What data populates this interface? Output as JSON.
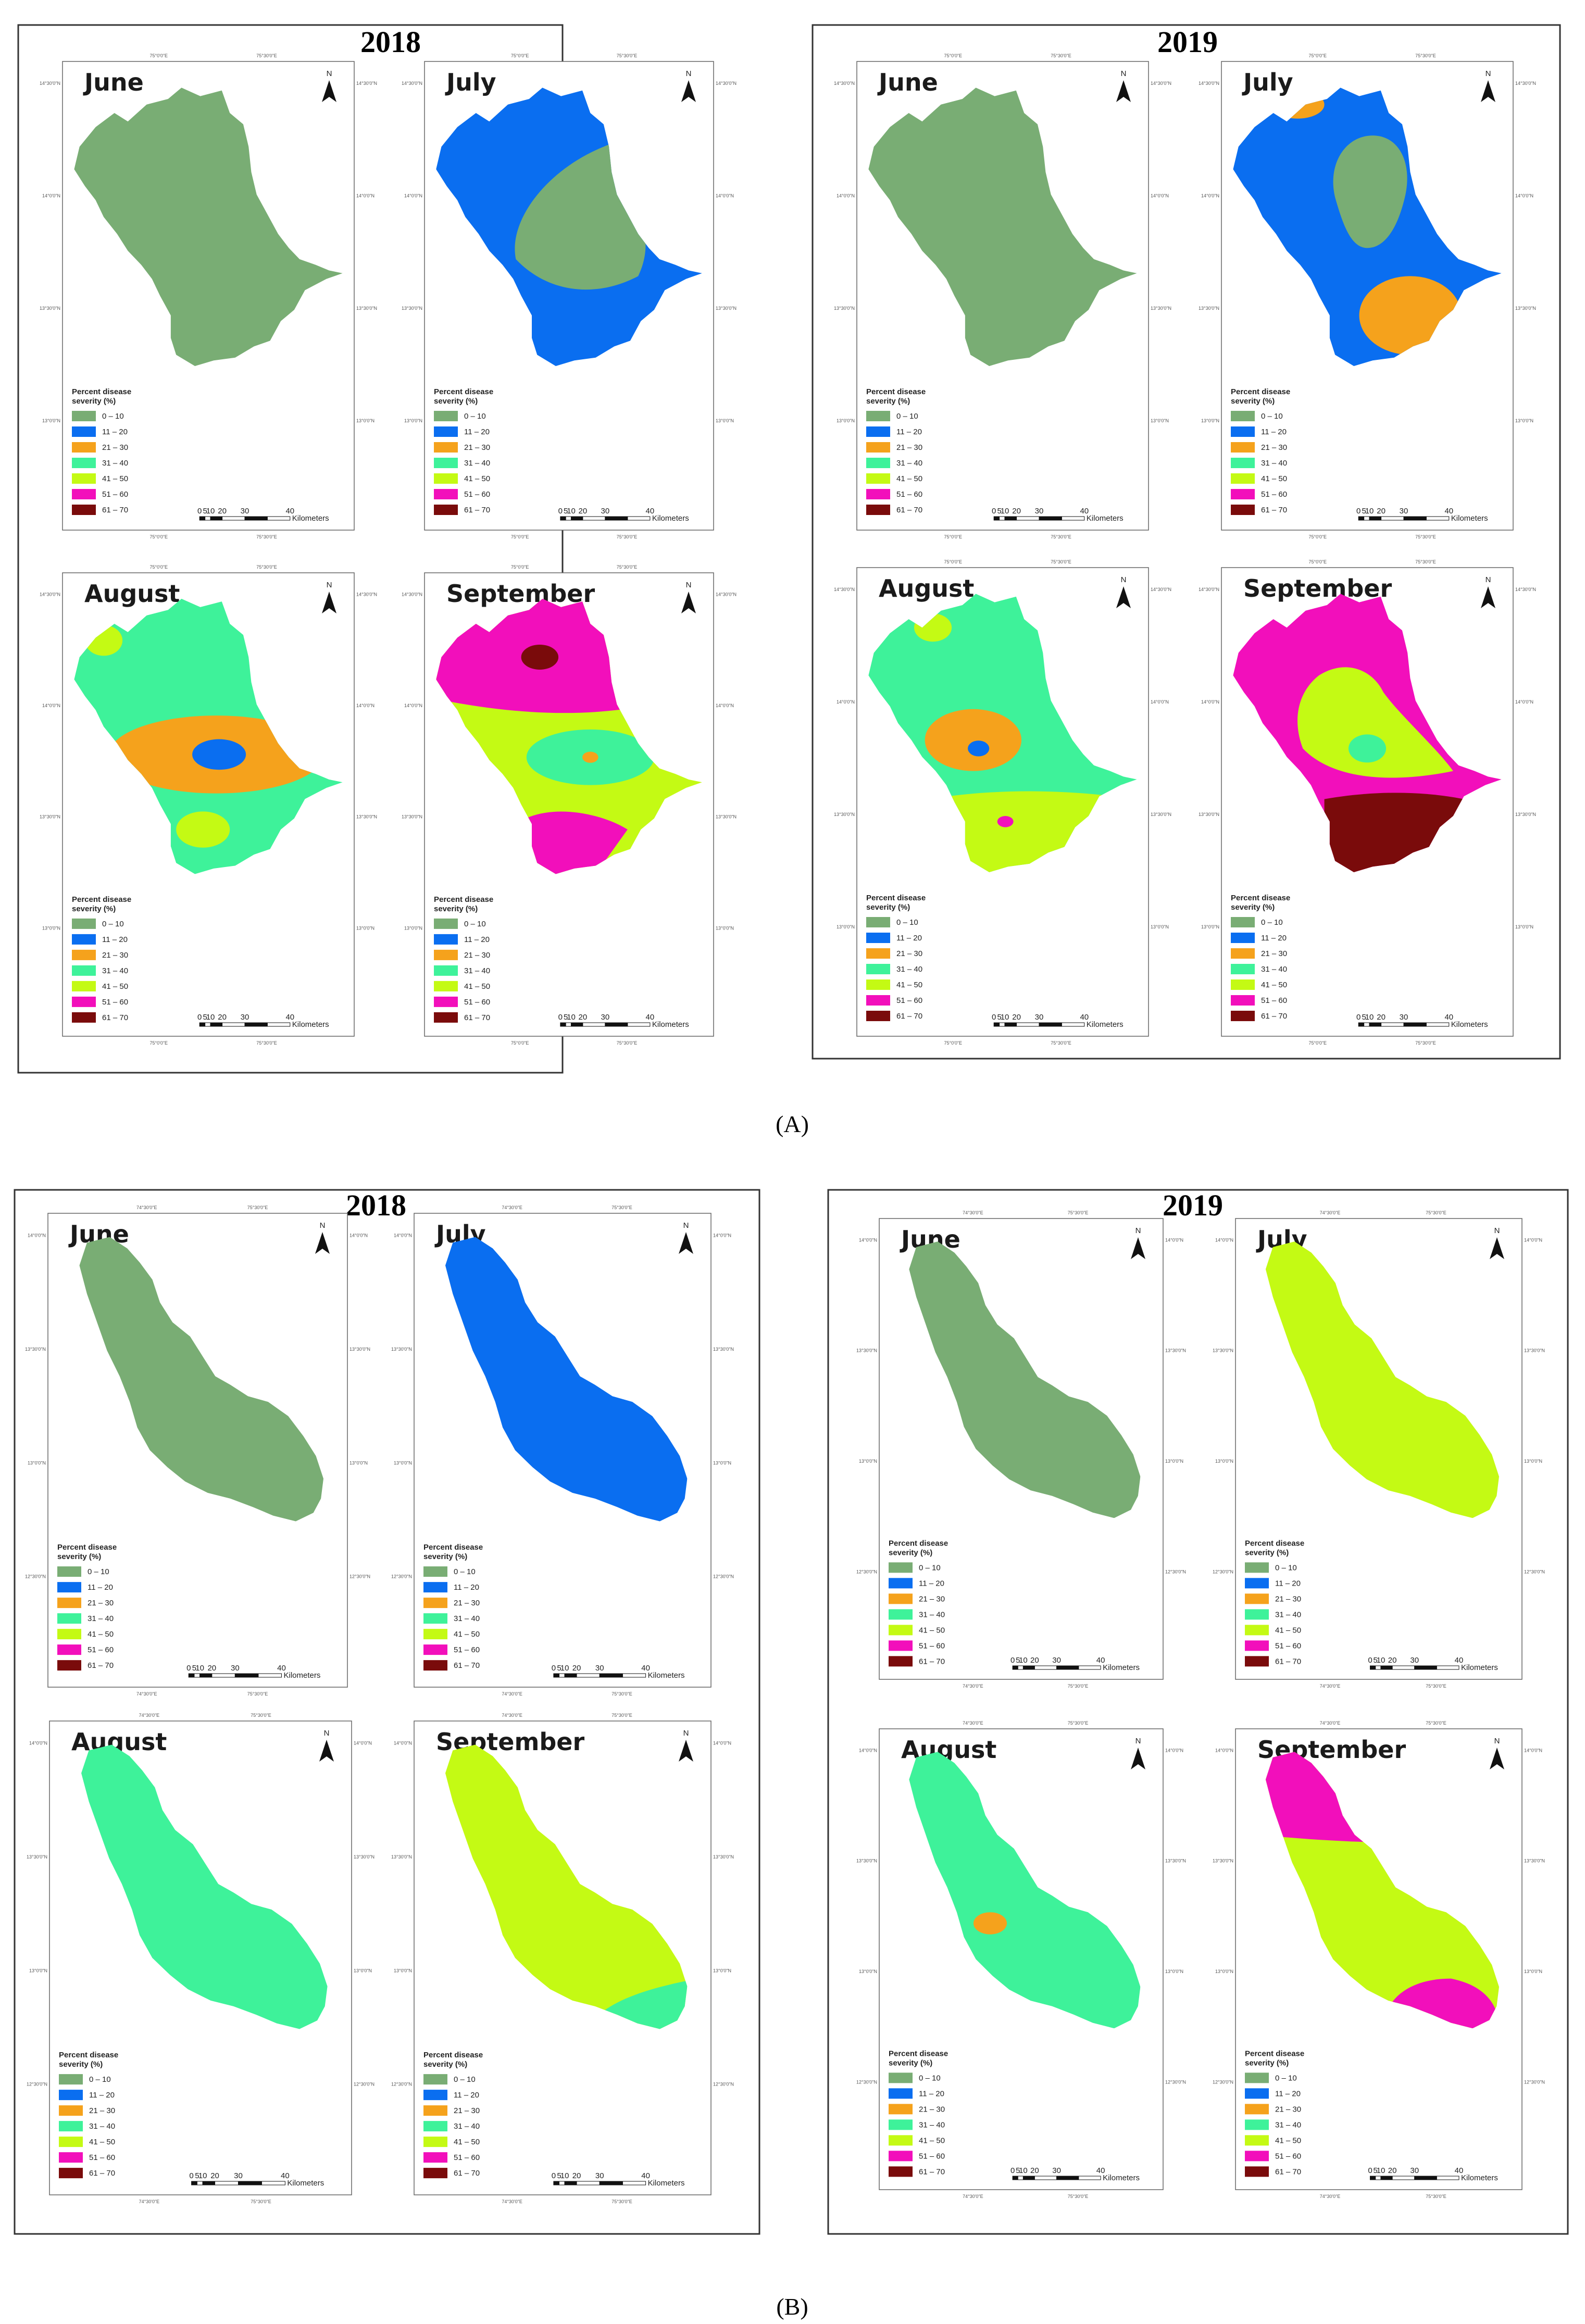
{
  "figure": {
    "sublabels": [
      "(A)",
      "(B)"
    ],
    "legend_title_line1": "Percent disease",
    "legend_title_line2": "severity (%)",
    "legend_items": [
      {
        "label": "0 – 10",
        "color": "#79ad74"
      },
      {
        "label": "11 – 20",
        "color": "#0a6ef0"
      },
      {
        "label": "21 – 30",
        "color": "#f5a21c"
      },
      {
        "label": "31 – 40",
        "color": "#3ef29a"
      },
      {
        "label": "41 – 50",
        "color": "#c4fa14"
      },
      {
        "label": "51 – 60",
        "color": "#f20fbb"
      },
      {
        "label": "61 – 70",
        "color": "#7a0b0b"
      }
    ],
    "scale_numbers": [
      "0",
      "5",
      "10",
      "20",
      "30",
      "40"
    ],
    "scale_unit": "Kilometers",
    "north_label": "N",
    "coords_A": {
      "lon_left": "75°0'0\"E",
      "lon_right": "75°30'0\"E",
      "lat_top": "14°30'0\"N",
      "lat_mid1": "14°0'0\"N",
      "lat_mid2": "13°30'0\"N",
      "lat_bottom": "13°0'0\"N"
    },
    "coords_B": {
      "lon_left": "74°30'0\"E",
      "lon_right": "75°30'0\"E",
      "lat_top": "14°0'0\"N",
      "lat_mid1": "13°30'0\"N",
      "lat_mid2": "13°0'0\"N",
      "lat_bottom": "12°30'0\"N"
    }
  },
  "panels": [
    {
      "section": "A",
      "year": "2018",
      "maps": [
        {
          "month": "June",
          "base": "0-10",
          "zones": []
        },
        {
          "month": "July",
          "base": "11-20",
          "zones": [
            {
              "class": "0-10",
              "shape": "central teardrop"
            }
          ]
        },
        {
          "month": "August",
          "base": "31-40",
          "zones": [
            {
              "class": "41-50",
              "shape": "north-west patch"
            },
            {
              "class": "21-30",
              "shape": "central oval"
            },
            {
              "class": "11-20",
              "shape": "center spot"
            },
            {
              "class": "41-50",
              "shape": "south patch"
            }
          ]
        },
        {
          "month": "September",
          "base": "41-50",
          "zones": [
            {
              "class": "51-60",
              "shape": "north third"
            },
            {
              "class": "61-70",
              "shape": "north spot"
            },
            {
              "class": "31-40",
              "shape": "central ring"
            },
            {
              "class": "21-30",
              "shape": "center dot"
            },
            {
              "class": "51-60",
              "shape": "south patch"
            }
          ]
        }
      ]
    },
    {
      "section": "A",
      "year": "2019",
      "maps": [
        {
          "month": "June",
          "base": "0-10",
          "zones": []
        },
        {
          "month": "July",
          "base": "11-20",
          "zones": [
            {
              "class": "21-30",
              "shape": "north spot"
            },
            {
              "class": "0-10",
              "shape": "central teardrop"
            },
            {
              "class": "21-30",
              "shape": "south blob"
            }
          ]
        },
        {
          "month": "August",
          "base": "31-40",
          "zones": [
            {
              "class": "41-50",
              "shape": "north-west patch"
            },
            {
              "class": "21-30",
              "shape": "central blob"
            },
            {
              "class": "11-20",
              "shape": "center dot"
            },
            {
              "class": "41-50",
              "shape": "south band"
            },
            {
              "class": "51-60",
              "shape": "south dot"
            }
          ]
        },
        {
          "month": "September",
          "base": "51-60",
          "zones": [
            {
              "class": "41-50",
              "shape": "central teardrop"
            },
            {
              "class": "31-40",
              "shape": "center spot"
            },
            {
              "class": "61-70",
              "shape": "south band"
            }
          ]
        }
      ]
    },
    {
      "section": "B",
      "year": "2018",
      "maps": [
        {
          "month": "June",
          "base": "0-10",
          "zones": []
        },
        {
          "month": "July",
          "base": "11-20",
          "zones": []
        },
        {
          "month": "August",
          "base": "31-40",
          "zones": []
        },
        {
          "month": "September",
          "base": "41-50",
          "zones": [
            {
              "class": "31-40",
              "shape": "south-east corner"
            }
          ]
        }
      ]
    },
    {
      "section": "B",
      "year": "2019",
      "maps": [
        {
          "month": "June",
          "base": "0-10",
          "zones": []
        },
        {
          "month": "July",
          "base": "41-50",
          "zones": []
        },
        {
          "month": "August",
          "base": "31-40",
          "zones": [
            {
              "class": "21-30",
              "shape": "central oval"
            }
          ]
        },
        {
          "month": "September",
          "base": "41-50",
          "zones": [
            {
              "class": "51-60",
              "shape": "north band"
            },
            {
              "class": "51-60",
              "shape": "south-east patch"
            }
          ]
        }
      ]
    }
  ]
}
